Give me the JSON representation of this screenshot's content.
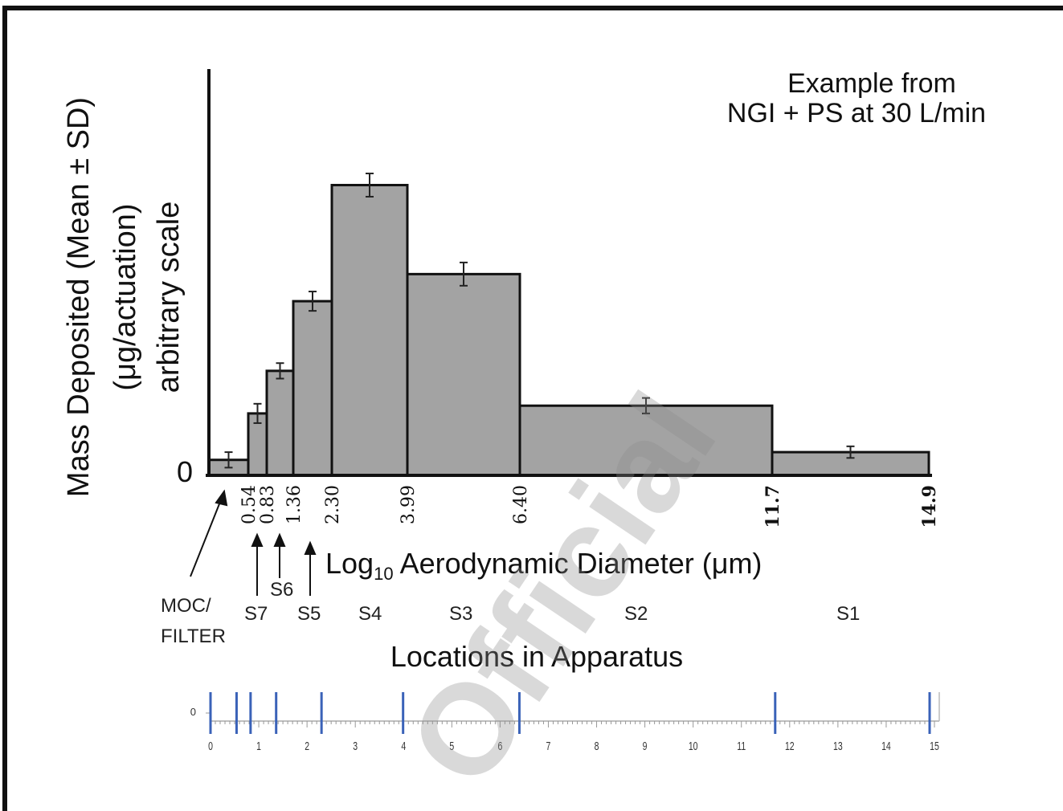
{
  "chart_data": {
    "type": "bar",
    "title": "",
    "annotation": {
      "line1": "Example from",
      "line2": "NGI + PS at 30 L/min"
    },
    "ylabel": {
      "line1": "Mass Deposited (Mean ± SD)",
      "line2": "(μg/actuation)",
      "line3": "arbitrary scale"
    },
    "y_zero_label": "0",
    "xlabel": {
      "prefix": "Log",
      "subscript": "10",
      "suffix": " Aerodynamic Diameter (μm)"
    },
    "x_cutoffs": [
      "0.54",
      "0.83",
      "1.36",
      "2.30",
      "3.99",
      "6.40",
      "11.7",
      "14.9"
    ],
    "bins": [
      {
        "x0": 0,
        "x1": 0.54,
        "value": 0.04,
        "error": 0.02
      },
      {
        "x0": 0.54,
        "x1": 0.83,
        "value": 0.16,
        "error": 0.025
      },
      {
        "x0": 0.83,
        "x1": 1.36,
        "value": 0.27,
        "error": 0.02
      },
      {
        "x0": 1.36,
        "x1": 2.3,
        "value": 0.45,
        "error": 0.025
      },
      {
        "x0": 2.3,
        "x1": 3.99,
        "value": 0.75,
        "error": 0.03
      },
      {
        "x0": 3.99,
        "x1": 6.4,
        "value": 0.52,
        "error": 0.03
      },
      {
        "x0": 6.4,
        "x1": 11.7,
        "value": 0.18,
        "error": 0.02
      },
      {
        "x0": 11.7,
        "x1": 14.9,
        "value": 0.06,
        "error": 0.015
      }
    ],
    "ylim": [
      0,
      1
    ],
    "grid": false,
    "locations_title": "Locations in Apparatus",
    "locations": [
      {
        "label": "MOC/\nFILTER",
        "bin": 0
      },
      {
        "label": "S7",
        "bin": 1
      },
      {
        "label": "S6",
        "bin": 2
      },
      {
        "label": "S5",
        "bin": 3
      },
      {
        "label": "S4",
        "bin": 4
      },
      {
        "label": "S3",
        "bin": 5
      },
      {
        "label": "S2",
        "bin": 6
      },
      {
        "label": "S1",
        "bin": 7
      }
    ],
    "scale_axis": {
      "zero_label": "0",
      "ticks": [
        "0",
        "1",
        "2",
        "3",
        "4",
        "5",
        "6",
        "7",
        "8",
        "9",
        "10",
        "11",
        "12",
        "13",
        "14",
        "15"
      ],
      "markers": [
        0,
        0.54,
        0.83,
        1.36,
        2.3,
        3.99,
        6.4,
        11.7,
        14.9
      ],
      "marker_color": "#3a62b8"
    },
    "bar_color": "#a3a3a3"
  },
  "watermark": "Official"
}
